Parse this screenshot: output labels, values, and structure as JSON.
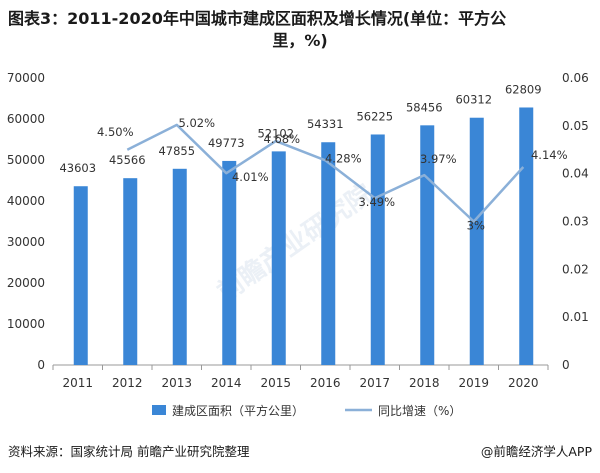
{
  "title_line1": "图表3：2011-2020年中国城市建成区面积及增长情况(单位：平方公",
  "title_line2": "里，%)",
  "footer": {
    "source": "资料来源：国家统计局 前瞻产业研究院整理",
    "brand": "@前瞻经济学人APP"
  },
  "watermark": "前瞻产业研究院",
  "colors": {
    "bar": "#3a86d6",
    "line": "#8bb0d8",
    "axis": "#999999",
    "text": "#333333"
  },
  "chart_data": {
    "type": "bar",
    "categories": [
      "2011",
      "2012",
      "2013",
      "2014",
      "2015",
      "2016",
      "2017",
      "2018",
      "2019",
      "2020"
    ],
    "series": [
      {
        "name": "建成区面积（平方公里）",
        "type": "bar",
        "axis": "left",
        "values": [
          43603,
          45566,
          47855,
          49773,
          52102,
          54331,
          56225,
          58456,
          60312,
          62809
        ],
        "labels": [
          "43603",
          "45566",
          "47855",
          "49773",
          "52102",
          "54331",
          "56225",
          "58456",
          "60312",
          "62809"
        ]
      },
      {
        "name": "同比增速（%）",
        "type": "line",
        "axis": "right",
        "values": [
          null,
          0.045,
          0.0502,
          0.0401,
          0.0468,
          0.0428,
          0.0349,
          0.0397,
          0.03,
          0.0414
        ],
        "labels": [
          "",
          "4.50%",
          "5.02%",
          "4.01%",
          "4.68%",
          "4.28%",
          "3.49%",
          "3.97%",
          "3%",
          "4.14%"
        ]
      }
    ],
    "y_left": {
      "min": 0,
      "max": 70000,
      "ticks": [
        "0",
        "10000",
        "20000",
        "30000",
        "40000",
        "50000",
        "60000",
        "70000"
      ]
    },
    "y_right": {
      "min": 0,
      "max": 0.06,
      "ticks": [
        "0",
        "0.01",
        "0.02",
        "0.03",
        "0.04",
        "0.05",
        "0.06"
      ]
    },
    "grid": false,
    "legend": "bottom"
  }
}
